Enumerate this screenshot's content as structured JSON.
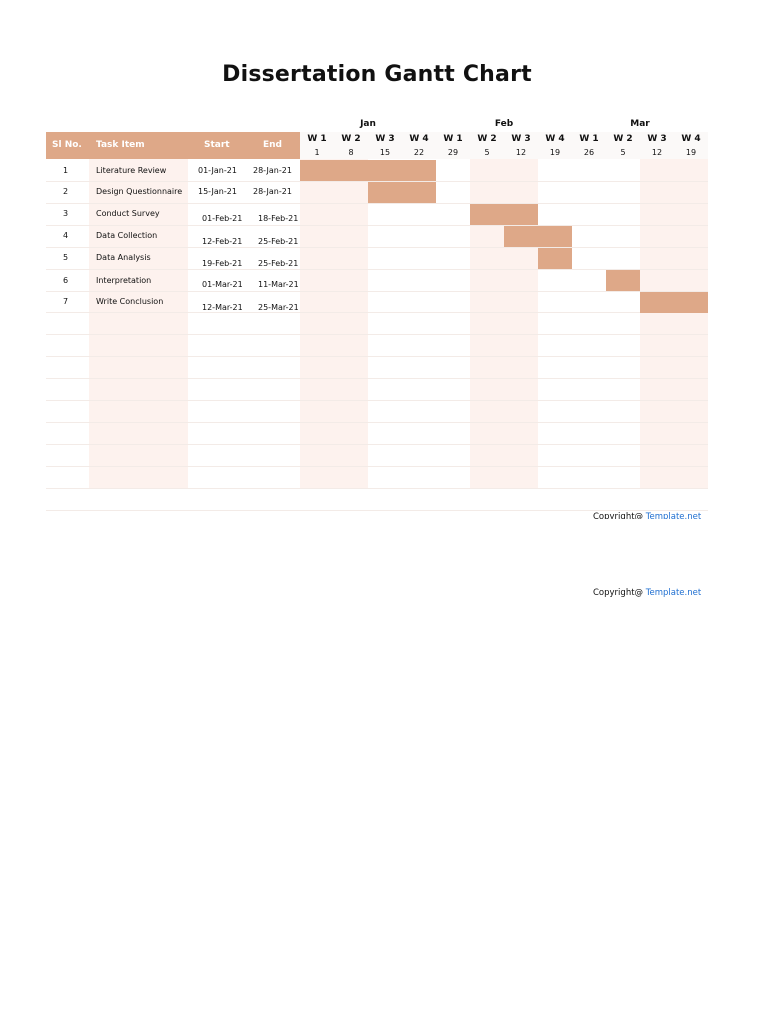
{
  "title": "Dissertation Gantt Chart",
  "months": [
    "Jan",
    "Feb",
    "Mar"
  ],
  "columns": {
    "sl": "Sl No.",
    "task": "Task Item",
    "start": "Start",
    "end": "End"
  },
  "weeks": [
    {
      "label": "W 1",
      "day": "1"
    },
    {
      "label": "W 2",
      "day": "8"
    },
    {
      "label": "W 3",
      "day": "15"
    },
    {
      "label": "W 4",
      "day": "22"
    },
    {
      "label": "W 1",
      "day": "29"
    },
    {
      "label": "W 2",
      "day": "5"
    },
    {
      "label": "W 3",
      "day": "12"
    },
    {
      "label": "W 4",
      "day": "19"
    },
    {
      "label": "W 1",
      "day": "26"
    },
    {
      "label": "W 2",
      "day": "5"
    },
    {
      "label": "W 3",
      "day": "12"
    },
    {
      "label": "W 4",
      "day": "19"
    }
  ],
  "tasks": [
    {
      "sl": "1",
      "task": "Literature Review",
      "start": "01-Jan-21",
      "end": "28-Jan-21",
      "week_from": 0,
      "week_to": 3
    },
    {
      "sl": "2",
      "task": "Design Questionnaire",
      "start": "15-Jan-21",
      "end": "28-Jan-21",
      "week_from": 2,
      "week_to": 3
    },
    {
      "sl": "3",
      "task": "Conduct Survey",
      "start": "01-Feb-21",
      "end": "18-Feb-21",
      "week_from": 5,
      "week_to": 6
    },
    {
      "sl": "4",
      "task": "Data Collection",
      "start": "12-Feb-21",
      "end": "25-Feb-21",
      "week_from": 6,
      "week_to": 7
    },
    {
      "sl": "5",
      "task": "Data Analysis",
      "start": "19-Feb-21",
      "end": "25-Feb-21",
      "week_from": 7,
      "week_to": 7
    },
    {
      "sl": "6",
      "task": "Interpretation",
      "start": "01-Mar-21",
      "end": "11-Mar-21",
      "week_from": 9,
      "week_to": 9
    },
    {
      "sl": "7",
      "task": "Write Conclusion",
      "start": "12-Mar-21",
      "end": "25-Mar-21",
      "week_from": 10,
      "week_to": 11
    }
  ],
  "footer": {
    "copyright": "Copyright@ ",
    "link": "Template.net"
  },
  "colors": {
    "bar": "#dea888",
    "header": "#dea888",
    "band": "#fdf2ee",
    "link": "#1f6fd1"
  }
}
